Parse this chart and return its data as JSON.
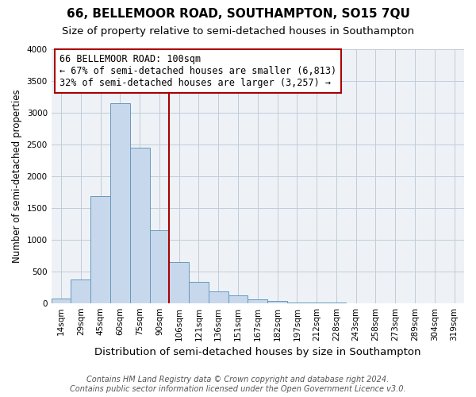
{
  "title": "66, BELLEMOOR ROAD, SOUTHAMPTON, SO15 7QU",
  "subtitle": "Size of property relative to semi-detached houses in Southampton",
  "xlabel": "Distribution of semi-detached houses by size in Southampton",
  "ylabel": "Number of semi-detached properties",
  "bar_color": "#c8d8ec",
  "bar_edge_color": "#6699bb",
  "bin_labels": [
    "14sqm",
    "29sqm",
    "45sqm",
    "60sqm",
    "75sqm",
    "90sqm",
    "106sqm",
    "121sqm",
    "136sqm",
    "151sqm",
    "167sqm",
    "182sqm",
    "197sqm",
    "212sqm",
    "228sqm",
    "243sqm",
    "258sqm",
    "273sqm",
    "289sqm",
    "304sqm",
    "319sqm"
  ],
  "bar_values": [
    75,
    370,
    1680,
    3150,
    2450,
    1150,
    640,
    330,
    185,
    115,
    55,
    30,
    10,
    5,
    3,
    2,
    1,
    1,
    0,
    0,
    0
  ],
  "ylim": [
    0,
    4000
  ],
  "yticks": [
    0,
    500,
    1000,
    1500,
    2000,
    2500,
    3000,
    3500,
    4000
  ],
  "property_line_x": 5.5,
  "property_line_color": "#aa0000",
  "annotation_box_color": "#aa0000",
  "annotation_lines": [
    "66 BELLEMOOR ROAD: 100sqm",
    "← 67% of semi-detached houses are smaller (6,813)",
    "32% of semi-detached houses are larger (3,257) →"
  ],
  "footnote1": "Contains HM Land Registry data © Crown copyright and database right 2024.",
  "footnote2": "Contains public sector information licensed under the Open Government Licence v3.0.",
  "background_color": "#eef2f7",
  "grid_color": "#c0ccd8",
  "title_fontsize": 11,
  "subtitle_fontsize": 9.5,
  "xlabel_fontsize": 9.5,
  "ylabel_fontsize": 8.5,
  "tick_fontsize": 7.5,
  "annotation_fontsize": 8.5,
  "footnote_fontsize": 7
}
